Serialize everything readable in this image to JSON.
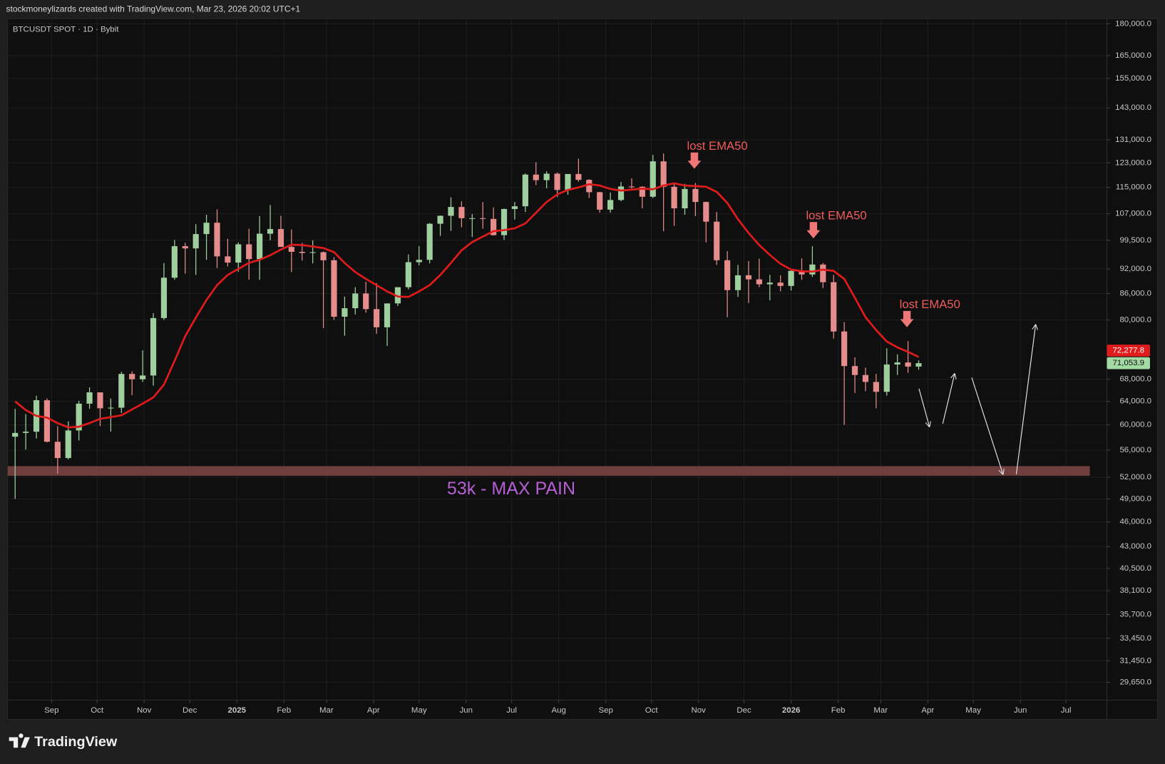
{
  "chart_data": {
    "type": "candlestick",
    "header": "stockmoneylizards created with TradingView.com, Mar 23, 2026 20:02 UTC+1",
    "title": "BTCUSDT SPOT · 1D · Bybit",
    "brand": "TradingView",
    "log_scale": true,
    "grid": true,
    "up_color": "#9fcf9f",
    "down_color": "#e58c8c",
    "xlim": [
      -0.71,
      102.71
    ],
    "ylim": [
      28240,
      182600
    ],
    "xticks": [
      {
        "value": 3.43,
        "label": "Sep"
      },
      {
        "value": 7.71,
        "label": "Oct"
      },
      {
        "value": 12.14,
        "label": "Nov"
      },
      {
        "value": 16.43,
        "label": "Dec"
      },
      {
        "value": 20.86,
        "label": "2025"
      },
      {
        "value": 25.29,
        "label": "Feb"
      },
      {
        "value": 29.29,
        "label": "Mar"
      },
      {
        "value": 33.71,
        "label": "Apr"
      },
      {
        "value": 38.0,
        "label": "May"
      },
      {
        "value": 42.43,
        "label": "Jun"
      },
      {
        "value": 46.71,
        "label": "Jul"
      },
      {
        "value": 51.14,
        "label": "Aug"
      },
      {
        "value": 55.57,
        "label": "Sep"
      },
      {
        "value": 59.86,
        "label": "Oct"
      },
      {
        "value": 64.29,
        "label": "Nov"
      },
      {
        "value": 68.57,
        "label": "Dec"
      },
      {
        "value": 73.0,
        "label": "2026"
      },
      {
        "value": 77.43,
        "label": "Feb"
      },
      {
        "value": 81.43,
        "label": "Mar"
      },
      {
        "value": 85.86,
        "label": "Apr"
      },
      {
        "value": 90.14,
        "label": "May"
      },
      {
        "value": 94.57,
        "label": "Jun"
      },
      {
        "value": 98.86,
        "label": "Jul"
      }
    ],
    "yticks": [
      {
        "value": 180000,
        "label": "180,000.0"
      },
      {
        "value": 165000,
        "label": "165,000.0"
      },
      {
        "value": 155000,
        "label": "155,000.0"
      },
      {
        "value": 143000,
        "label": "143,000.0"
      },
      {
        "value": 131000,
        "label": "131,000.0"
      },
      {
        "value": 123000,
        "label": "123,000.0"
      },
      {
        "value": 115000,
        "label": "115,000.0"
      },
      {
        "value": 107000,
        "label": "107,000.0"
      },
      {
        "value": 99500,
        "label": "99,500.0"
      },
      {
        "value": 92000,
        "label": "92,000.0"
      },
      {
        "value": 86000,
        "label": "86,000.0"
      },
      {
        "value": 80000,
        "label": "80,000.0"
      },
      {
        "value": 68000,
        "label": "68,000.0"
      },
      {
        "value": 64000,
        "label": "64,000.0"
      },
      {
        "value": 60000,
        "label": "60,000.0"
      },
      {
        "value": 56000,
        "label": "56,000.0"
      },
      {
        "value": 52000,
        "label": "52,000.0"
      },
      {
        "value": 49000,
        "label": "49,000.0"
      },
      {
        "value": 46000,
        "label": "46,000.0"
      },
      {
        "value": 43000,
        "label": "43,000.0"
      },
      {
        "value": 40500,
        "label": "40,500.0"
      },
      {
        "value": 38100,
        "label": "38,100.0"
      },
      {
        "value": 35700,
        "label": "35,700.0"
      },
      {
        "value": 33450,
        "label": "33,450.0"
      },
      {
        "value": 31450,
        "label": "31,450.0"
      },
      {
        "value": 29650,
        "label": "29,650.0"
      }
    ],
    "ohlc": [
      [
        58100,
        62700,
        49000,
        58700
      ],
      [
        58700,
        61800,
        56100,
        58900
      ],
      [
        58900,
        65000,
        57800,
        64200
      ],
      [
        64200,
        64500,
        57200,
        57300
      ],
      [
        57300,
        59800,
        52500,
        54800
      ],
      [
        54800,
        60600,
        54600,
        59100
      ],
      [
        59100,
        64100,
        57500,
        63600
      ],
      [
        63600,
        66500,
        62700,
        65600
      ],
      [
        65600,
        65600,
        59800,
        62800
      ],
      [
        62800,
        64500,
        58900,
        62900
      ],
      [
        62900,
        69400,
        62000,
        69000
      ],
      [
        69000,
        69500,
        65100,
        68000
      ],
      [
        68000,
        73600,
        67500,
        68700
      ],
      [
        68700,
        81500,
        66800,
        80400
      ],
      [
        80400,
        93500,
        80000,
        89800
      ],
      [
        89800,
        99600,
        89300,
        97900
      ],
      [
        97900,
        98800,
        90800,
        97300
      ],
      [
        97300,
        104000,
        90500,
        101200
      ],
      [
        101200,
        106700,
        94300,
        104400
      ],
      [
        104400,
        108300,
        92200,
        95200
      ],
      [
        95200,
        99900,
        92600,
        93600
      ],
      [
        93600,
        98900,
        91300,
        98400
      ],
      [
        98400,
        102700,
        89300,
        94500
      ],
      [
        94500,
        106300,
        89300,
        101300
      ],
      [
        101300,
        109600,
        99500,
        102600
      ],
      [
        102600,
        106400,
        97800,
        97700
      ],
      [
        97700,
        102500,
        91200,
        96400
      ],
      [
        96400,
        98800,
        94100,
        96100
      ],
      [
        96100,
        99500,
        93400,
        96300
      ],
      [
        96300,
        96500,
        78200,
        94200
      ],
      [
        94200,
        95000,
        80000,
        80700
      ],
      [
        80700,
        85300,
        76600,
        82600
      ],
      [
        82600,
        87500,
        81200,
        86000
      ],
      [
        86000,
        88800,
        81600,
        82400
      ],
      [
        82400,
        88500,
        77000,
        78400
      ],
      [
        78400,
        83600,
        74500,
        83700
      ],
      [
        83700,
        86400,
        83100,
        87500
      ],
      [
        87500,
        95700,
        87000,
        93700
      ],
      [
        93700,
        97900,
        92900,
        94300
      ],
      [
        94300,
        104300,
        93400,
        104100
      ],
      [
        104100,
        106500,
        100700,
        106400
      ],
      [
        106400,
        111900,
        102100,
        109000
      ],
      [
        109000,
        110700,
        103100,
        105700
      ],
      [
        105700,
        106900,
        100400,
        105700
      ],
      [
        105700,
        110500,
        102700,
        105500
      ],
      [
        105500,
        108900,
        100800,
        100900
      ],
      [
        100900,
        108500,
        99600,
        108400
      ],
      [
        108400,
        110500,
        105300,
        109200
      ],
      [
        109200,
        119500,
        107500,
        119100
      ],
      [
        119100,
        123200,
        115700,
        117300
      ],
      [
        117300,
        120200,
        114700,
        119400
      ],
      [
        119400,
        119800,
        112000,
        114200
      ],
      [
        114200,
        119300,
        112700,
        119300
      ],
      [
        119300,
        124400,
        116800,
        117400
      ],
      [
        117400,
        117600,
        111700,
        113500
      ],
      [
        113500,
        113600,
        107300,
        108200
      ],
      [
        108200,
        113400,
        107300,
        111100
      ],
      [
        111100,
        116700,
        110700,
        115300
      ],
      [
        115300,
        117900,
        114700,
        115200
      ],
      [
        115200,
        115400,
        108600,
        112100
      ],
      [
        112100,
        125700,
        111700,
        123500
      ],
      [
        123500,
        126200,
        102000,
        115200
      ],
      [
        115200,
        116000,
        103500,
        108600
      ],
      [
        108600,
        116100,
        106700,
        114500
      ],
      [
        114500,
        116400,
        106300,
        110500
      ],
      [
        110500,
        110600,
        98900,
        104700
      ],
      [
        104700,
        107500,
        93000,
        94200
      ],
      [
        94200,
        96600,
        80600,
        86800
      ],
      [
        86800,
        93000,
        85200,
        90400
      ],
      [
        90400,
        94000,
        83800,
        89400
      ],
      [
        89400,
        94600,
        87500,
        88200
      ],
      [
        88200,
        90500,
        84400,
        88600
      ],
      [
        88600,
        90400,
        86500,
        87800
      ],
      [
        87800,
        91800,
        86700,
        91500
      ],
      [
        91500,
        94700,
        89300,
        90600
      ],
      [
        90600,
        97900,
        90000,
        93100
      ],
      [
        93100,
        93500,
        87300,
        88700
      ],
      [
        88700,
        90500,
        76000,
        77500
      ],
      [
        77500,
        79500,
        60000,
        70500
      ],
      [
        70500,
        72200,
        65500,
        68800
      ],
      [
        68800,
        70200,
        65800,
        67500
      ],
      [
        67500,
        69000,
        62800,
        65700
      ],
      [
        65700,
        74000,
        65000,
        70800
      ],
      [
        70800,
        72800,
        68800,
        71200
      ],
      [
        71200,
        75500,
        69200,
        70400
      ],
      [
        70400,
        71600,
        69800,
        71053.9
      ]
    ],
    "close_label": "71,053.9",
    "ema": {
      "color": "#e01b1b",
      "values": [
        64000,
        62500,
        61500,
        61200,
        60300,
        59600,
        59700,
        60300,
        61000,
        61300,
        61600,
        62600,
        63600,
        64700,
        67000,
        71500,
        76500,
        80500,
        84500,
        88000,
        90500,
        92000,
        93500,
        94300,
        95500,
        97000,
        98300,
        98200,
        97800,
        97400,
        96300,
        93500,
        91200,
        89500,
        88000,
        86500,
        85300,
        85200,
        86500,
        88000,
        90500,
        93500,
        96800,
        99000,
        100500,
        102000,
        102300,
        102800,
        104200,
        107300,
        110500,
        112800,
        114200,
        115000,
        116000,
        115600,
        114500,
        114000,
        114300,
        114600,
        114400,
        115600,
        116300,
        115600,
        115400,
        115200,
        113600,
        110200,
        105400,
        101500,
        98200,
        95600,
        93300,
        91800,
        91400,
        91300,
        91800,
        91500,
        89500,
        85000,
        80600,
        77800,
        75400,
        74200,
        73300,
        72277.8
      ],
      "label": "72,277.8"
    },
    "zone": {
      "from": 52200,
      "to": 53600,
      "label": "53k - MAX PAIN",
      "color": "#7a4444"
    },
    "annotations": [
      {
        "text": "lost EMA50",
        "x": 63.9,
        "price": 121000
      },
      {
        "text": "lost EMA50",
        "x": 75.1,
        "price": 100000
      },
      {
        "text": "lost EMA50",
        "x": 83.9,
        "price": 78400
      }
    ]
  }
}
